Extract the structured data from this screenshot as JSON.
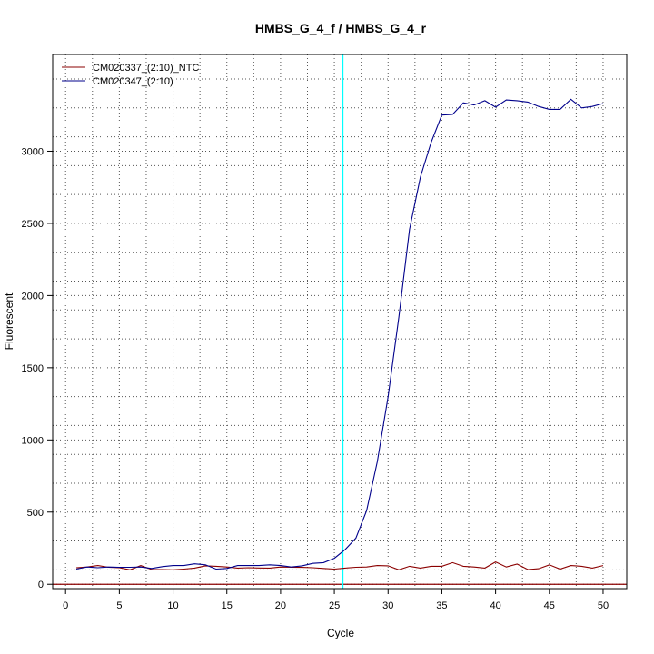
{
  "chart_data": {
    "type": "line",
    "title": "HMBS_G_4_f / HMBS_G_4_r",
    "xlabel": "Cycle",
    "ylabel": "Fluorescent",
    "xlim": [
      -1.2,
      52.2
    ],
    "ylim": [
      -30,
      3670
    ],
    "xticks": [
      0,
      5,
      10,
      15,
      20,
      25,
      30,
      35,
      40,
      45,
      50
    ],
    "yticks": [
      0,
      500,
      1000,
      1500,
      2000,
      2500,
      3000
    ],
    "grid": true,
    "grid_x": [
      2.5,
      7.5,
      12.5,
      17.5,
      22.5,
      27.5,
      32.5,
      37.5,
      42.5,
      47.5
    ],
    "grid_y": [
      100,
      300,
      700,
      900,
      1100,
      1300,
      1700,
      1900,
      2100,
      2300,
      2700,
      2900,
      3100,
      3300,
      3500
    ],
    "threshold_cycle": 25.8,
    "threshold_color": "#00FFFF",
    "baseline_value": 0,
    "baseline_color": "#8B0000",
    "legend_position": "top-left",
    "x": [
      1,
      2,
      3,
      4,
      5,
      6,
      7,
      8,
      9,
      10,
      11,
      12,
      13,
      14,
      15,
      16,
      17,
      18,
      19,
      20,
      21,
      22,
      23,
      24,
      25,
      26,
      27,
      28,
      29,
      30,
      31,
      32,
      33,
      34,
      35,
      36,
      37,
      38,
      39,
      40,
      41,
      42,
      43,
      44,
      45,
      46,
      47,
      48,
      49,
      50
    ],
    "series": [
      {
        "name": "CM020337_(2:10)_NTC",
        "color": "#8B0000",
        "values": [
          115,
          120,
          130,
          118,
          115,
          100,
          130,
          102,
          102,
          100,
          105,
          112,
          128,
          125,
          120,
          112,
          115,
          113,
          112,
          120,
          118,
          117,
          115,
          110,
          105,
          112,
          118,
          120,
          130,
          128,
          100,
          125,
          112,
          125,
          125,
          150,
          125,
          120,
          112,
          155,
          120,
          140,
          102,
          108,
          135,
          105,
          130,
          125,
          112,
          130
        ]
      },
      {
        "name": "CM020347_(2:10)",
        "color": "#00008B",
        "values": [
          105,
          120,
          115,
          120,
          118,
          118,
          120,
          110,
          122,
          130,
          130,
          142,
          135,
          105,
          110,
          130,
          130,
          130,
          135,
          130,
          120,
          128,
          145,
          150,
          180,
          240,
          320,
          510,
          850,
          1300,
          1850,
          2460,
          2820,
          3060,
          3250,
          3255,
          3335,
          3320,
          3350,
          3305,
          3355,
          3350,
          3340,
          3310,
          3290,
          3290,
          3360,
          3300,
          3310,
          3330
        ]
      }
    ]
  }
}
